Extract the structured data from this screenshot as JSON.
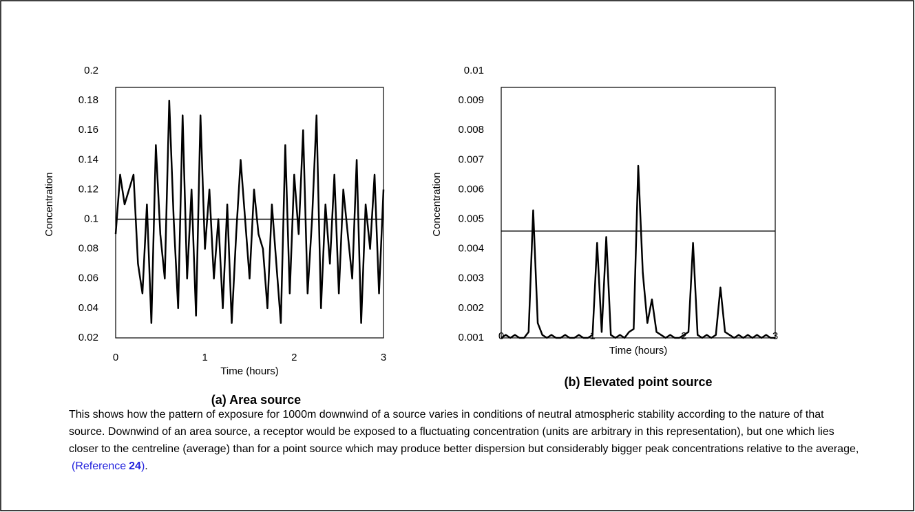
{
  "chart_data": [
    {
      "type": "line",
      "title": "(a) Area source",
      "xlabel": "Time (hours)",
      "ylabel": "Concentration",
      "x": [
        0,
        0.05,
        0.1,
        0.15,
        0.2,
        0.25,
        0.3,
        0.35,
        0.4,
        0.45,
        0.5,
        0.55,
        0.6,
        0.65,
        0.7,
        0.75,
        0.8,
        0.85,
        0.9,
        0.95,
        1,
        1.05,
        1.1,
        1.15,
        1.2,
        1.25,
        1.3,
        1.35,
        1.4,
        1.45,
        1.5,
        1.55,
        1.6,
        1.65,
        1.7,
        1.75,
        1.8,
        1.85,
        1.9,
        1.95,
        2,
        2.05,
        2.1,
        2.15,
        2.2,
        2.25,
        2.3,
        2.35,
        2.4,
        2.45,
        2.5,
        2.55,
        2.6,
        2.65,
        2.7,
        2.75,
        2.8,
        2.85,
        2.9,
        2.95,
        3
      ],
      "series": [
        {
          "color": "#000000",
          "values": [
            0.09,
            0.13,
            0.11,
            0.12,
            0.13,
            0.07,
            0.05,
            0.11,
            0.03,
            0.15,
            0.09,
            0.06,
            0.18,
            0.1,
            0.04,
            0.17,
            0.06,
            0.12,
            0.035,
            0.17,
            0.08,
            0.12,
            0.06,
            0.1,
            0.04,
            0.11,
            0.03,
            0.09,
            0.14,
            0.1,
            0.06,
            0.12,
            0.09,
            0.08,
            0.04,
            0.11,
            0.07,
            0.03,
            0.15,
            0.05,
            0.13,
            0.09,
            0.16,
            0.05,
            0.1,
            0.17,
            0.04,
            0.11,
            0.07,
            0.13,
            0.05,
            0.12,
            0.09,
            0.06,
            0.14,
            0.03,
            0.11,
            0.08,
            0.13,
            0.05,
            0.12
          ]
        }
      ],
      "mean_line": 0.1,
      "xlim": [
        0,
        3
      ],
      "xticks": [
        0,
        1,
        2,
        3
      ],
      "ylim": [
        0.02,
        0.2
      ],
      "yticks": [
        0.02,
        0.04,
        0.06,
        0.08,
        0.1,
        0.12,
        0.14,
        0.16,
        0.18,
        0.2
      ]
    },
    {
      "type": "line",
      "title": "(b)  Elevated point source",
      "xlabel": "Time (hours)",
      "ylabel": "Concentration",
      "x": [
        0,
        0.05,
        0.1,
        0.15,
        0.2,
        0.25,
        0.3,
        0.35,
        0.4,
        0.45,
        0.5,
        0.55,
        0.6,
        0.65,
        0.7,
        0.75,
        0.8,
        0.85,
        0.9,
        0.95,
        1,
        1.05,
        1.1,
        1.15,
        1.2,
        1.25,
        1.3,
        1.35,
        1.4,
        1.45,
        1.5,
        1.55,
        1.6,
        1.65,
        1.7,
        1.75,
        1.8,
        1.85,
        1.9,
        1.95,
        2,
        2.05,
        2.1,
        2.15,
        2.2,
        2.25,
        2.3,
        2.35,
        2.4,
        2.45,
        2.5,
        2.55,
        2.6,
        2.65,
        2.7,
        2.75,
        2.8,
        2.85,
        2.9,
        2.95,
        3
      ],
      "series": [
        {
          "color": "#000000",
          "values": [
            0.001,
            0.0011,
            0.001,
            0.0011,
            0.001,
            0.001,
            0.0012,
            0.0053,
            0.0015,
            0.0011,
            0.001,
            0.0011,
            0.001,
            0.001,
            0.0011,
            0.001,
            0.001,
            0.0011,
            0.001,
            0.001,
            0.0011,
            0.0042,
            0.0012,
            0.0044,
            0.0011,
            0.001,
            0.0011,
            0.001,
            0.0012,
            0.0013,
            0.0068,
            0.0032,
            0.0015,
            0.0023,
            0.0012,
            0.0011,
            0.001,
            0.0011,
            0.001,
            0.001,
            0.0011,
            0.0012,
            0.0042,
            0.0011,
            0.001,
            0.0011,
            0.001,
            0.0011,
            0.0027,
            0.0012,
            0.0011,
            0.001,
            0.0011,
            0.001,
            0.0011,
            0.001,
            0.0011,
            0.001,
            0.0011,
            0.001,
            0.001
          ]
        }
      ],
      "mean_line": 0.0046,
      "xlim": [
        0,
        3
      ],
      "xticks": [
        0,
        1,
        2,
        3
      ],
      "ylim": [
        0.001,
        0.01
      ],
      "yticks": [
        0.001,
        0.002,
        0.003,
        0.004,
        0.005,
        0.006,
        0.007,
        0.008,
        0.009,
        0.01
      ]
    }
  ],
  "caption": "This shows how the pattern of exposure for 1000m downwind of a source varies in conditions of neutral atmospheric stability according to the nature of that source.  Downwind of an area source, a receptor would be exposed to a fluctuating concentration (units are arbitrary in this representation), but one which lies closer to the centreline (average) than for a point source which may produce better dispersion but considerably bigger peak concentrations relative to the average,",
  "reference": {
    "open": "(Reference",
    "number": "24",
    "close": ")"
  },
  "caption_end": "."
}
